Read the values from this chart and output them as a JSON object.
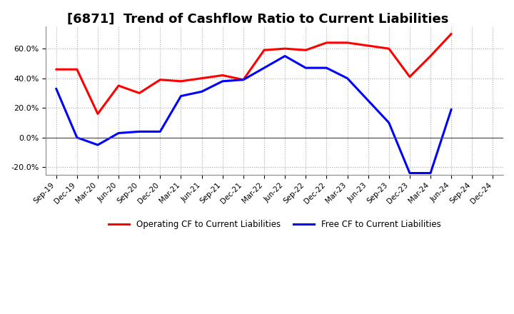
{
  "title": "[6871]  Trend of Cashflow Ratio to Current Liabilities",
  "x_labels": [
    "Sep-19",
    "Dec-19",
    "Mar-20",
    "Jun-20",
    "Sep-20",
    "Dec-20",
    "Mar-21",
    "Jun-21",
    "Sep-21",
    "Dec-21",
    "Mar-22",
    "Jun-22",
    "Sep-22",
    "Dec-22",
    "Mar-23",
    "Jun-23",
    "Sep-23",
    "Dec-23",
    "Mar-24",
    "Jun-24",
    "Sep-24",
    "Dec-24"
  ],
  "operating_cf": [
    0.46,
    0.46,
    0.16,
    0.35,
    0.3,
    0.39,
    0.38,
    0.4,
    0.42,
    0.39,
    0.59,
    0.6,
    0.59,
    0.64,
    0.64,
    0.62,
    0.6,
    0.41,
    0.55,
    0.7,
    null,
    null
  ],
  "free_cf": [
    0.33,
    0.0,
    -0.05,
    0.03,
    0.04,
    0.04,
    0.28,
    0.31,
    0.38,
    0.39,
    0.47,
    0.55,
    0.47,
    0.47,
    0.4,
    0.25,
    0.1,
    -0.24,
    -0.24,
    0.19,
    null,
    null
  ],
  "operating_cf_color": "#FF0000",
  "free_cf_color": "#0000FF",
  "background_color": "#FFFFFF",
  "grid_color": "#AAAAAA",
  "title_fontsize": 13,
  "ylim": [
    -0.25,
    0.75
  ],
  "yticks": [
    -0.2,
    0.0,
    0.2,
    0.4,
    0.6
  ],
  "legend_labels": [
    "Operating CF to Current Liabilities",
    "Free CF to Current Liabilities"
  ]
}
